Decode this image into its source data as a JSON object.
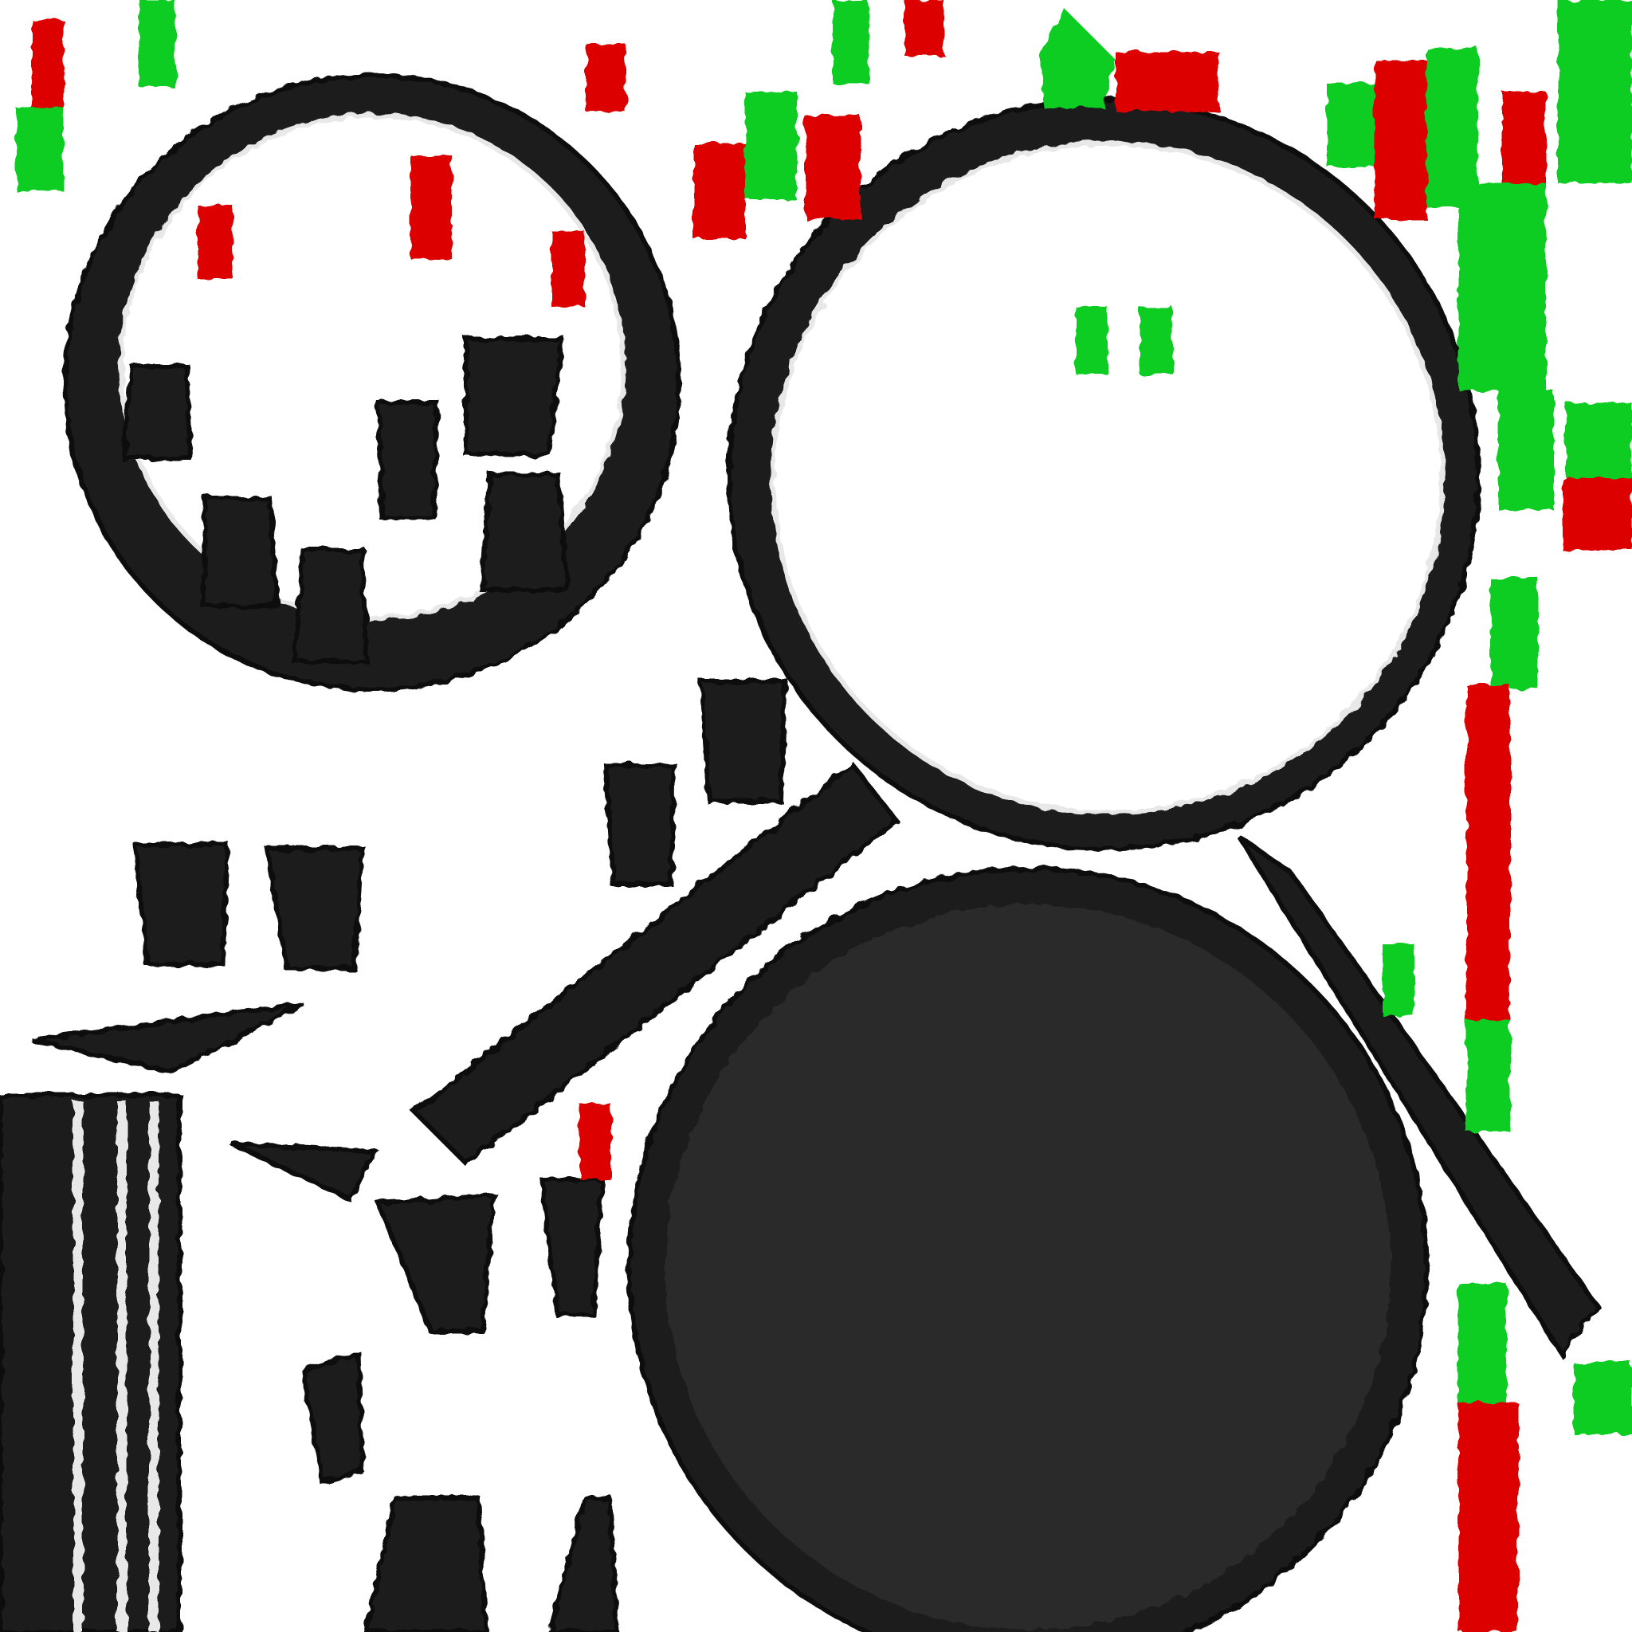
{
  "texture": {
    "background_color": "#ffffff",
    "surface_color": "#1d1d1d",
    "surface_edge_color": "#0c0c0c",
    "highlight_color": "#2c2c2c",
    "accent_red": "#dd0000",
    "accent_green": "#11cc22",
    "light_edge_color": "#e8e8e8"
  }
}
